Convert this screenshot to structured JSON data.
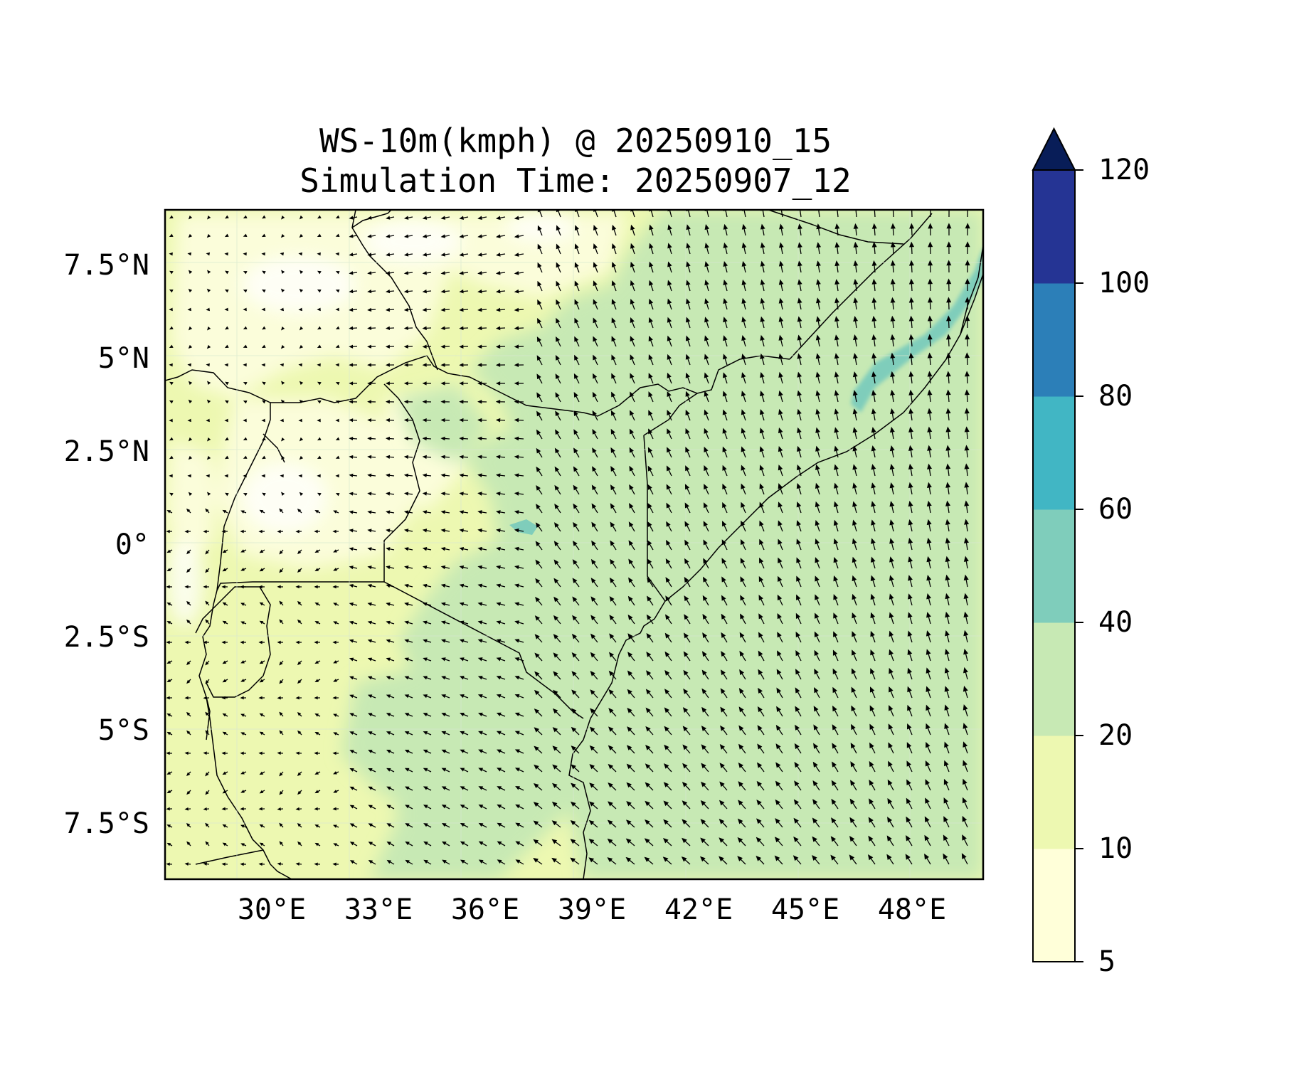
{
  "title": {
    "line1": "WS-10m(kmph) @ 20250910_15",
    "line2": "Simulation Time: 20250907_12"
  },
  "map": {
    "lon_range": [
      27,
      50
    ],
    "lat_range": [
      -9,
      9
    ],
    "x_ticks": [
      {
        "lon": 30,
        "label": "30°E"
      },
      {
        "lon": 33,
        "label": "33°E"
      },
      {
        "lon": 36,
        "label": "36°E"
      },
      {
        "lon": 39,
        "label": "39°E"
      },
      {
        "lon": 42,
        "label": "42°E"
      },
      {
        "lon": 45,
        "label": "45°E"
      },
      {
        "lon": 48,
        "label": "48°E"
      }
    ],
    "y_ticks": [
      {
        "lat": 7.5,
        "label": "7.5°N"
      },
      {
        "lat": 5,
        "label": "5°N"
      },
      {
        "lat": 2.5,
        "label": "2.5°N"
      },
      {
        "lat": 0,
        "label": "0°"
      },
      {
        "lat": -2.5,
        "label": "2.5°S"
      },
      {
        "lat": -5,
        "label": "5°S"
      },
      {
        "lat": -7.5,
        "label": "7.5°S"
      }
    ],
    "field": "10 m wind speed (kmph) with wind direction arrows"
  },
  "colorbar": {
    "levels": [
      {
        "value": 5,
        "label": "5"
      },
      {
        "value": 10,
        "label": "10"
      },
      {
        "value": 20,
        "label": "20"
      },
      {
        "value": 40,
        "label": "40"
      },
      {
        "value": 60,
        "label": "60"
      },
      {
        "value": 80,
        "label": "80"
      },
      {
        "value": 100,
        "label": "100"
      },
      {
        "value": 120,
        "label": "120"
      }
    ],
    "colors": [
      "#ffffd9",
      "#edf8b1",
      "#c7e9b4",
      "#7fcdbb",
      "#41b6c4",
      "#2c7fb8",
      "#253494",
      "#081d58"
    ],
    "extend": "max"
  }
}
